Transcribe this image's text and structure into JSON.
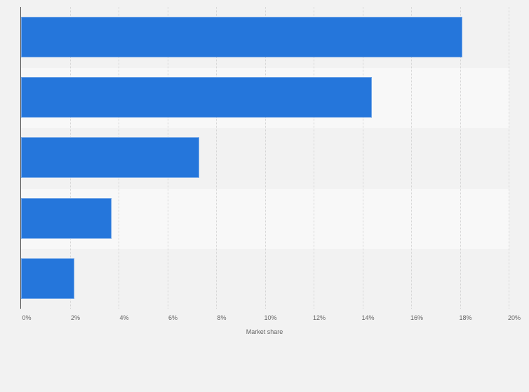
{
  "chart_data": {
    "type": "bar",
    "orientation": "horizontal",
    "title": "",
    "xlabel": "Market share",
    "ylabel": "",
    "categories": [
      "",
      "",
      "",
      "",
      ""
    ],
    "values": [
      18.1,
      14.4,
      7.3,
      3.7,
      2.2
    ],
    "xlim": [
      0,
      20
    ],
    "x_ticks": [
      "0%",
      "2%",
      "4%",
      "6%",
      "8%",
      "10%",
      "12%",
      "14%",
      "16%",
      "18%",
      "20%"
    ],
    "grid": true,
    "legend": null,
    "colors": {
      "bar": "#2576db",
      "background": "#f2f2f2",
      "band_light": "#f8f8f8"
    }
  }
}
